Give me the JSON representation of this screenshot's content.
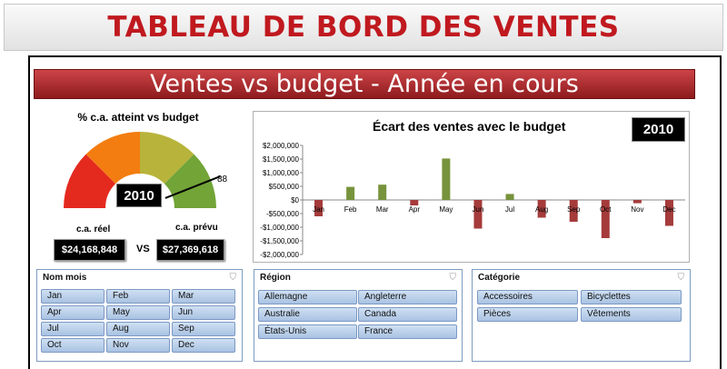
{
  "header": {
    "title": "TABLEAU DE BORD DES VENTES"
  },
  "banner": {
    "title": "Ventes vs budget - Année en cours"
  },
  "gauge": {
    "title": "% c.a. atteint vs budget",
    "year": "2010",
    "value": 88,
    "value_label": "88",
    "colors": [
      "#e42a1f",
      "#f37d10",
      "#b8b33a",
      "#72a437"
    ],
    "actual_label": "c.a. réel",
    "budget_label": "c.a. prévu",
    "actual_value": "$24,168,848",
    "budget_value": "$27,369,618",
    "vs_label": "VS"
  },
  "chart_data": {
    "type": "bar",
    "title": "Écart des ventes avec le budget",
    "year_badge": "2010",
    "categories": [
      "Jan",
      "Feb",
      "Mar",
      "Apr",
      "May",
      "Jun",
      "Jul",
      "Aug",
      "Sep",
      "Oct",
      "Nov",
      "Dec"
    ],
    "values": [
      -600000,
      480000,
      560000,
      -200000,
      1520000,
      -1050000,
      220000,
      -650000,
      -800000,
      -1400000,
      -120000,
      -950000
    ],
    "ylim": [
      -2000000,
      2000000
    ],
    "yticks": [
      "$2,000,000",
      "$1,500,000",
      "$1,000,000",
      "$500,000",
      "$0",
      "-$500,000",
      "-$1,000,000",
      "-$1,500,000",
      "-$2,000,000"
    ],
    "positive_color": "#77933c",
    "negative_color": "#a53b3b",
    "xlabel": "",
    "ylabel": ""
  },
  "slicers": {
    "months": {
      "title": "Nom mois",
      "items": [
        "Jan",
        "Feb",
        "Mar",
        "Apr",
        "May",
        "Jun",
        "Jul",
        "Aug",
        "Sep",
        "Oct",
        "Nov",
        "Dec"
      ]
    },
    "region": {
      "title": "Région",
      "items": [
        "Allemagne",
        "Angleterre",
        "Australie",
        "Canada",
        "États-Unis",
        "France"
      ]
    },
    "category": {
      "title": "Catégorie",
      "items": [
        "Accessoires",
        "Bicyclettes",
        "Pièces",
        "Vêtements"
      ]
    }
  }
}
